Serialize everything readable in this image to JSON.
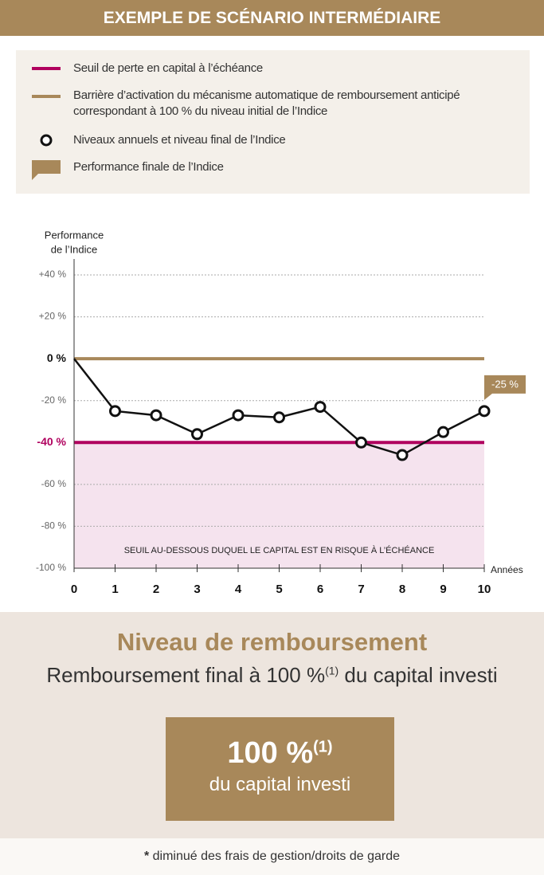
{
  "header": {
    "title": "EXEMPLE DE SCÉNARIO INTERMÉDIAIRE"
  },
  "chart_data": {
    "type": "line",
    "ylabel": [
      "Performance",
      "de l’Indice"
    ],
    "xlabel": "Années",
    "x": [
      0,
      1,
      2,
      3,
      4,
      5,
      6,
      7,
      8,
      9,
      10
    ],
    "xlim": [
      0,
      10
    ],
    "xticks": [
      0,
      1,
      2,
      3,
      4,
      5,
      6,
      7,
      8,
      9,
      10
    ],
    "ylim": [
      -100,
      40
    ],
    "yticks": [
      {
        "value": 40,
        "label": "+40 %"
      },
      {
        "value": 20,
        "label": "+20 %"
      },
      {
        "value": 0,
        "label": "0 %"
      },
      {
        "value": -20,
        "label": "-20 %"
      },
      {
        "value": -40,
        "label": "-40 %"
      },
      {
        "value": -60,
        "label": "-60 %"
      },
      {
        "value": -80,
        "label": "-80 %"
      },
      {
        "value": -100,
        "label": "-100 %"
      }
    ],
    "grid": true,
    "series": [
      {
        "name": "Niveaux annuels et niveau final de l’Indice",
        "color": "#111111",
        "values": [
          0,
          -25,
          -27,
          -36,
          -27,
          -28,
          -23,
          -40,
          -46,
          -35,
          -25
        ],
        "value_labels": [
          null,
          null,
          null,
          null,
          null,
          null,
          null,
          null,
          null,
          null,
          "-25 %"
        ]
      }
    ],
    "threshold": {
      "name": "Seuil de perte en capital à l’échéance",
      "value": -40,
      "color": "#b0005e",
      "zone_label": "SEUIL AU-DESSOUS DUQUEL LE CAPITAL EST EN RISQUE À L’ÉCHÉANCE",
      "zone_color": "#f5e3ee"
    },
    "barrier": {
      "name": "Barrière d’activation du mécanisme automatique de remboursement anticipé correspondant à 100 % du niveau initial de l’Indice",
      "value": 0,
      "color": "#a8885a"
    },
    "final_callout": {
      "name": "Performance finale de l’Indice",
      "color": "#a8885a"
    }
  },
  "result": {
    "title": "Niveau de remboursement",
    "subtitle_before": "Remboursement final à 100 %",
    "subtitle_note": "(1)",
    "subtitle_after": " du capital investi",
    "box_value": "100 %",
    "box_note": "(1)",
    "box_text": "du capital investi"
  },
  "footnote": {
    "star": "*",
    "text": " diminué des frais de gestion/droits de garde"
  }
}
